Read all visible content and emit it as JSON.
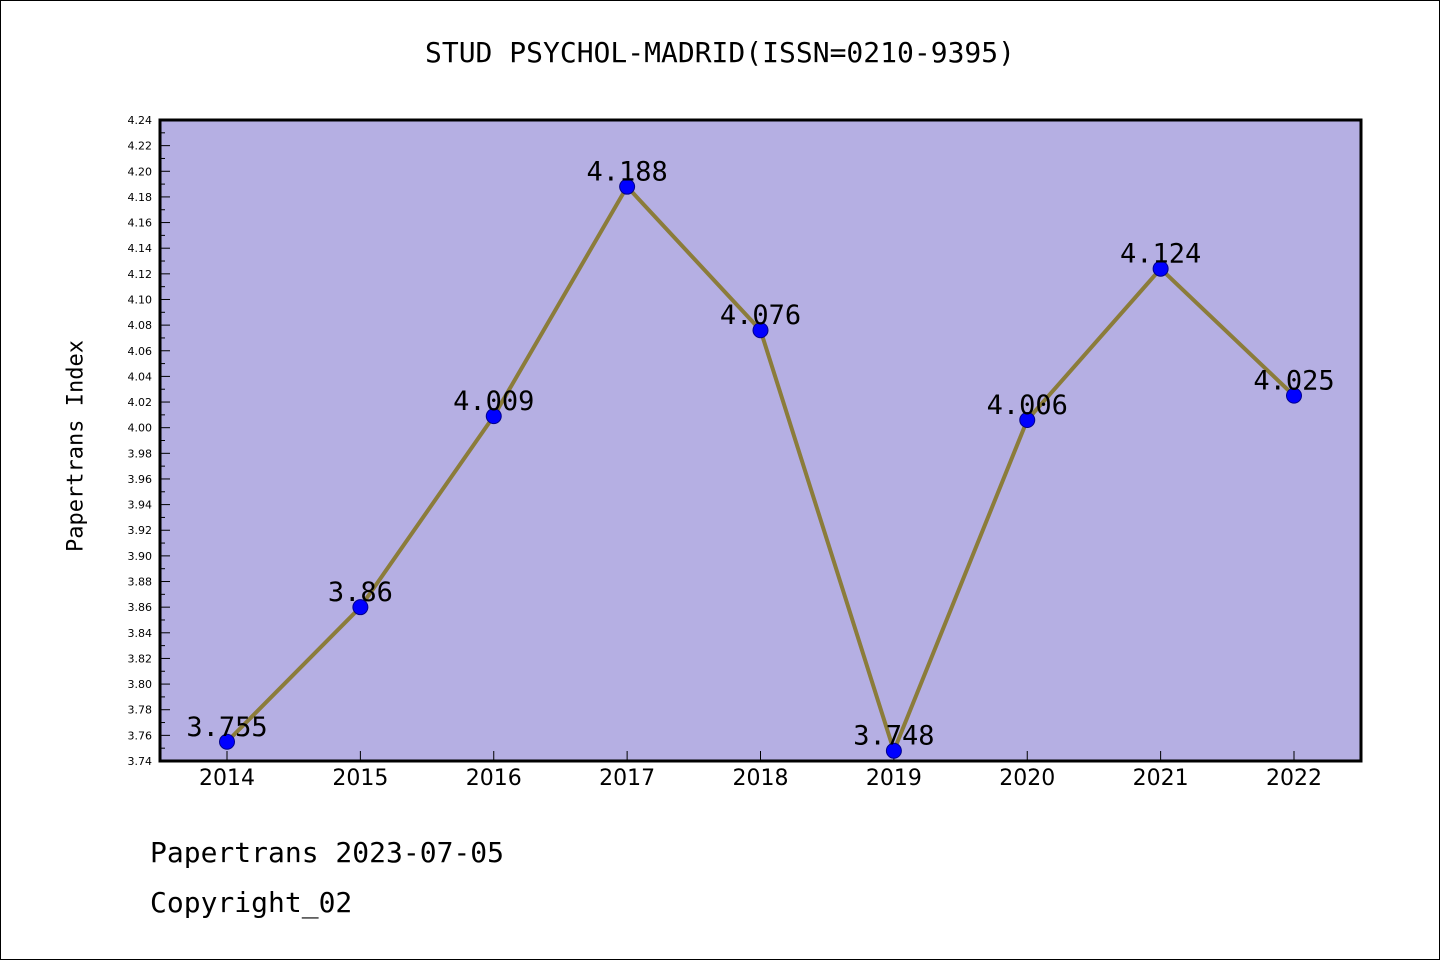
{
  "page": {
    "footer_date": "Papertrans 2023-07-05",
    "footer_copyright": "Copyright_02"
  },
  "chart_data": {
    "type": "line",
    "title": "STUD PSYCHOL-MADRID(ISSN=0210-9395)",
    "xlabel": "",
    "ylabel": "Papertrans Index",
    "categories": [
      "2014",
      "2015",
      "2016",
      "2017",
      "2018",
      "2019",
      "2020",
      "2021",
      "2022"
    ],
    "series": [
      {
        "values": [
          3.755,
          3.86,
          4.009,
          4.188,
          4.076,
          3.748,
          4.006,
          4.124,
          4.025
        ],
        "labels": [
          "3.755",
          "3.86",
          "4.009",
          "4.188",
          "4.076",
          "3.748",
          "4.006",
          "4.124",
          "4.025"
        ]
      }
    ],
    "ylim": [
      3.74,
      4.24
    ],
    "ytick_step": 0.02,
    "yminor_step": 0.01,
    "grid": false,
    "colors": {
      "plot_background": "#b5afe3",
      "line": "#8b7c3a",
      "marker": "#0000ff",
      "marker_edge": "#00008b",
      "axis": "#000000"
    }
  }
}
